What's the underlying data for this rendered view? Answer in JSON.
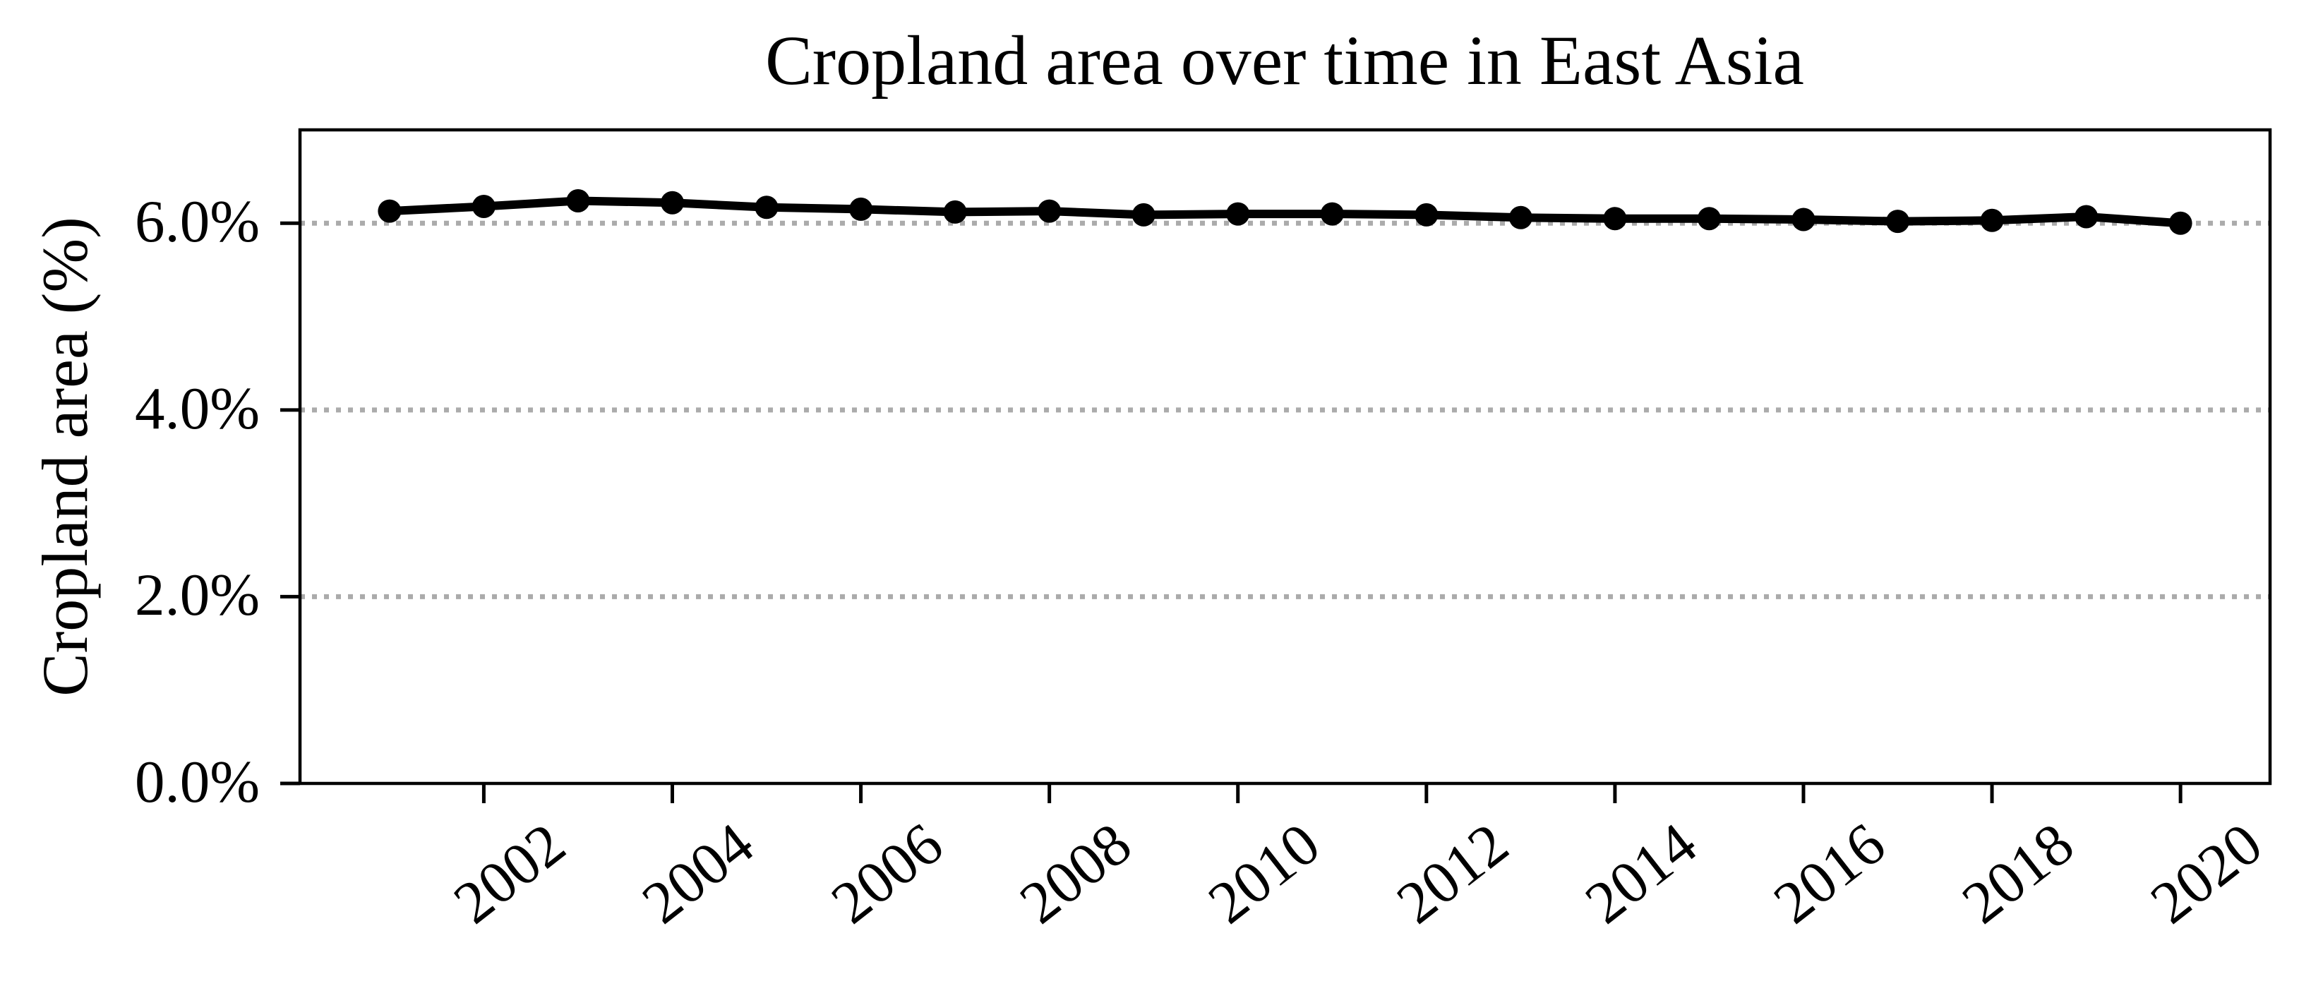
{
  "title": "Cropland area over time in East Asia",
  "chart_data": {
    "type": "line",
    "title": "Cropland area over time in East Asia",
    "xlabel": "",
    "ylabel": "Cropland area (%)",
    "x": [
      2001,
      2002,
      2003,
      2004,
      2005,
      2006,
      2007,
      2008,
      2009,
      2010,
      2011,
      2012,
      2013,
      2014,
      2015,
      2016,
      2017,
      2018,
      2019,
      2020
    ],
    "series": [
      {
        "name": "Cropland area (%)",
        "values": [
          6.13,
          6.18,
          6.24,
          6.22,
          6.17,
          6.15,
          6.12,
          6.13,
          6.09,
          6.1,
          6.1,
          6.09,
          6.06,
          6.05,
          6.05,
          6.04,
          6.02,
          6.03,
          6.07,
          6.0
        ]
      }
    ],
    "x_ticks": [
      2002,
      2004,
      2006,
      2008,
      2010,
      2012,
      2014,
      2016,
      2018,
      2020
    ],
    "x_tick_labels": [
      "2002",
      "2004",
      "2006",
      "2008",
      "2010",
      "2012",
      "2014",
      "2016",
      "2018",
      "2020"
    ],
    "y_ticks": [
      0,
      2,
      4,
      6
    ],
    "y_tick_labels": [
      "0.0%",
      "2.0%",
      "4.0%",
      "6.0%"
    ],
    "y_grid_ticks": [
      2,
      4,
      6
    ],
    "xlim": [
      2000.05,
      2020.95
    ],
    "ylim": [
      0,
      7
    ],
    "grid": "horizontal dotted",
    "legend": "none",
    "marker": "circle",
    "line_color": "#000000",
    "marker_color": "#000000",
    "grid_color": "#ababab",
    "axis_color": "#000000",
    "background_color": "#ffffff"
  }
}
